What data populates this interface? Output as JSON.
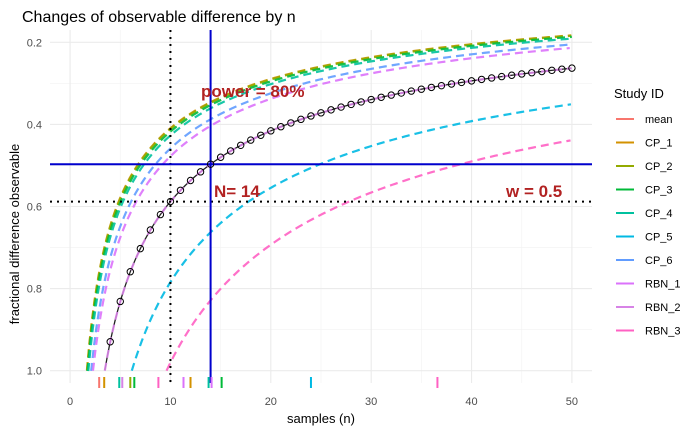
{
  "chart_data": {
    "type": "line",
    "title": "Changes of observable difference by n",
    "xlabel": "samples (n)",
    "ylabel": "fractional difference observable",
    "xlim": [
      -2,
      52
    ],
    "ylim": [
      0.17,
      1.03
    ],
    "y_reversed": true,
    "x_ticks": [
      0,
      10,
      20,
      30,
      40,
      50
    ],
    "y_ticks": [
      0.2,
      0.4,
      0.6,
      0.8,
      1.0
    ],
    "x_tick_labels": [
      "0",
      "10",
      "20",
      "30",
      "40",
      "50"
    ],
    "y_tick_labels": [
      "0.2",
      "0.4",
      "0.6",
      "0.8",
      "1.0"
    ],
    "legend_title": "Study ID",
    "series": [
      {
        "name": "mean",
        "color": "#F8766D",
        "k": 1.859,
        "x_start": 3.46
      },
      {
        "name": "CP_1",
        "color": "#D39200",
        "k": 1.294,
        "x_start": 1.68
      },
      {
        "name": "CP_2",
        "color": "#93AA00",
        "k": 1.3,
        "x_start": 1.69
      },
      {
        "name": "CP_3",
        "color": "#00BA38",
        "k": 1.32,
        "x_start": 1.74
      },
      {
        "name": "CP_4",
        "color": "#00C19F",
        "k": 1.35,
        "x_start": 1.82
      },
      {
        "name": "CP_5",
        "color": "#00B9E3",
        "k": 2.48,
        "x_start": 6.15
      },
      {
        "name": "CP_6",
        "color": "#619CFF",
        "k": 1.45,
        "x_start": 2.1
      },
      {
        "name": "RBN_1",
        "color": "#DB72FB",
        "k": 1.51,
        "x_start": 2.28
      },
      {
        "name": "RBN_2",
        "color": "#D783E6",
        "k": 1.86,
        "x_start": 3.46
      },
      {
        "name": "RBN_3",
        "color": "#FF61C3",
        "k": 3.1,
        "x_start": 9.61
      }
    ],
    "mean_points_n": [
      4,
      5,
      6,
      7,
      8,
      9,
      10,
      11,
      12,
      13,
      14,
      15,
      16,
      17,
      18,
      19,
      20,
      21,
      22,
      23,
      24,
      25,
      26,
      27,
      28,
      29,
      30,
      31,
      32,
      33,
      34,
      35,
      36,
      37,
      38,
      39,
      40,
      41,
      42,
      43,
      44,
      45,
      46,
      47,
      48,
      49,
      50
    ],
    "rug_x": [
      2.9,
      3.4,
      4.9,
      5.2,
      6.0,
      6.4,
      8.8,
      11.3,
      12.0,
      13.8,
      14.1,
      15.1,
      24.0,
      36.6
    ],
    "rug_colors": [
      "#F8766D",
      "#D39200",
      "#00C19F",
      "#D783E6",
      "#93AA00",
      "#00BA38",
      "#FF61C3",
      "#DB72FB",
      "#D39200",
      "#00C19F",
      "#DB72FB",
      "#00BA38",
      "#00B9E3",
      "#FF61C3"
    ],
    "reference_lines": {
      "vline_solid_x": 14,
      "hline_solid_y": 0.497,
      "vline_dotted_x": 10,
      "hline_dotted_y": 0.588
    },
    "annotations": {
      "power": "power = 80%",
      "n_label": "N= 14",
      "w_label": "w = 0.5"
    }
  }
}
